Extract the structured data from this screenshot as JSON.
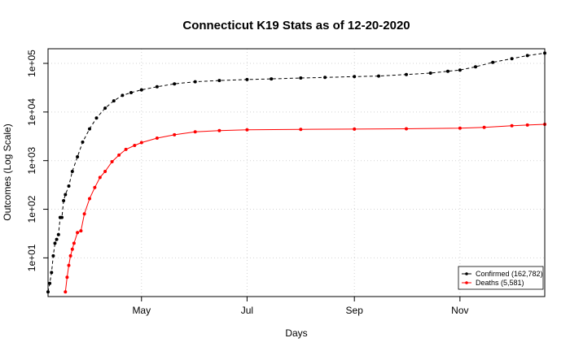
{
  "chart_data": {
    "type": "line",
    "title": "Connecticut K19 Stats as of 12-20-2020",
    "xlabel": "Days",
    "ylabel": "Outcomes (Log Scale)",
    "y_scale": "log10",
    "xlim": [
      "2020-03-08",
      "2020-12-20"
    ],
    "ylim": [
      1.6,
      200000
    ],
    "grid": true,
    "legend_position": "bottom-right",
    "x_ticks": [
      {
        "date": "2020-05-01",
        "label": "May"
      },
      {
        "date": "2020-07-01",
        "label": "Jul"
      },
      {
        "date": "2020-09-01",
        "label": "Sep"
      },
      {
        "date": "2020-11-01",
        "label": "Nov"
      }
    ],
    "y_ticks": [
      {
        "value": 10,
        "label": "1e+01"
      },
      {
        "value": 100,
        "label": "1e+02"
      },
      {
        "value": 1000,
        "label": "1e+03"
      },
      {
        "value": 10000,
        "label": "1e+04"
      },
      {
        "value": 100000,
        "label": "1e+05"
      }
    ],
    "series": [
      {
        "name": "Confirmed (162,782)",
        "color": "#000000",
        "line_style": "dashed",
        "points": [
          [
            "2020-03-08",
            2
          ],
          [
            "2020-03-09",
            3
          ],
          [
            "2020-03-10",
            5
          ],
          [
            "2020-03-11",
            11
          ],
          [
            "2020-03-12",
            20
          ],
          [
            "2020-03-13",
            24
          ],
          [
            "2020-03-14",
            30
          ],
          [
            "2020-03-15",
            68
          ],
          [
            "2020-03-16",
            68
          ],
          [
            "2020-03-17",
            150
          ],
          [
            "2020-03-18",
            200
          ],
          [
            "2020-03-20",
            300
          ],
          [
            "2020-03-22",
            600
          ],
          [
            "2020-03-25",
            1200
          ],
          [
            "2020-03-28",
            2400
          ],
          [
            "2020-04-01",
            4500
          ],
          [
            "2020-04-05",
            7500
          ],
          [
            "2020-04-10",
            12000
          ],
          [
            "2020-04-15",
            17000
          ],
          [
            "2020-04-20",
            22000
          ],
          [
            "2020-04-25",
            25000
          ],
          [
            "2020-05-01",
            28500
          ],
          [
            "2020-05-10",
            33000
          ],
          [
            "2020-05-20",
            38000
          ],
          [
            "2020-06-01",
            42000
          ],
          [
            "2020-06-15",
            44500
          ],
          [
            "2020-07-01",
            46500
          ],
          [
            "2020-07-15",
            48000
          ],
          [
            "2020-08-01",
            50000
          ],
          [
            "2020-08-15",
            51500
          ],
          [
            "2020-09-01",
            53500
          ],
          [
            "2020-09-15",
            55000
          ],
          [
            "2020-10-01",
            59000
          ],
          [
            "2020-10-15",
            63000
          ],
          [
            "2020-10-25",
            69000
          ],
          [
            "2020-11-01",
            73000
          ],
          [
            "2020-11-10",
            85000
          ],
          [
            "2020-11-20",
            105000
          ],
          [
            "2020-12-01",
            125000
          ],
          [
            "2020-12-10",
            145000
          ],
          [
            "2020-12-20",
            162782
          ]
        ]
      },
      {
        "name": "Deaths (5,581)",
        "color": "#ff0000",
        "line_style": "solid",
        "points": [
          [
            "2020-03-18",
            2
          ],
          [
            "2020-03-19",
            4
          ],
          [
            "2020-03-20",
            7
          ],
          [
            "2020-03-21",
            11
          ],
          [
            "2020-03-22",
            15
          ],
          [
            "2020-03-23",
            20
          ],
          [
            "2020-03-25",
            33
          ],
          [
            "2020-03-27",
            36
          ],
          [
            "2020-03-29",
            80
          ],
          [
            "2020-04-01",
            165
          ],
          [
            "2020-04-04",
            280
          ],
          [
            "2020-04-07",
            450
          ],
          [
            "2020-04-10",
            600
          ],
          [
            "2020-04-14",
            950
          ],
          [
            "2020-04-18",
            1300
          ],
          [
            "2020-04-22",
            1700
          ],
          [
            "2020-04-27",
            2050
          ],
          [
            "2020-05-01",
            2350
          ],
          [
            "2020-05-10",
            2900
          ],
          [
            "2020-05-20",
            3400
          ],
          [
            "2020-06-01",
            3900
          ],
          [
            "2020-06-15",
            4150
          ],
          [
            "2020-07-01",
            4300
          ],
          [
            "2020-08-01",
            4400
          ],
          [
            "2020-09-01",
            4450
          ],
          [
            "2020-10-01",
            4520
          ],
          [
            "2020-11-01",
            4650
          ],
          [
            "2020-11-15",
            4850
          ],
          [
            "2020-12-01",
            5200
          ],
          [
            "2020-12-10",
            5400
          ],
          [
            "2020-12-20",
            5581
          ]
        ]
      }
    ]
  }
}
